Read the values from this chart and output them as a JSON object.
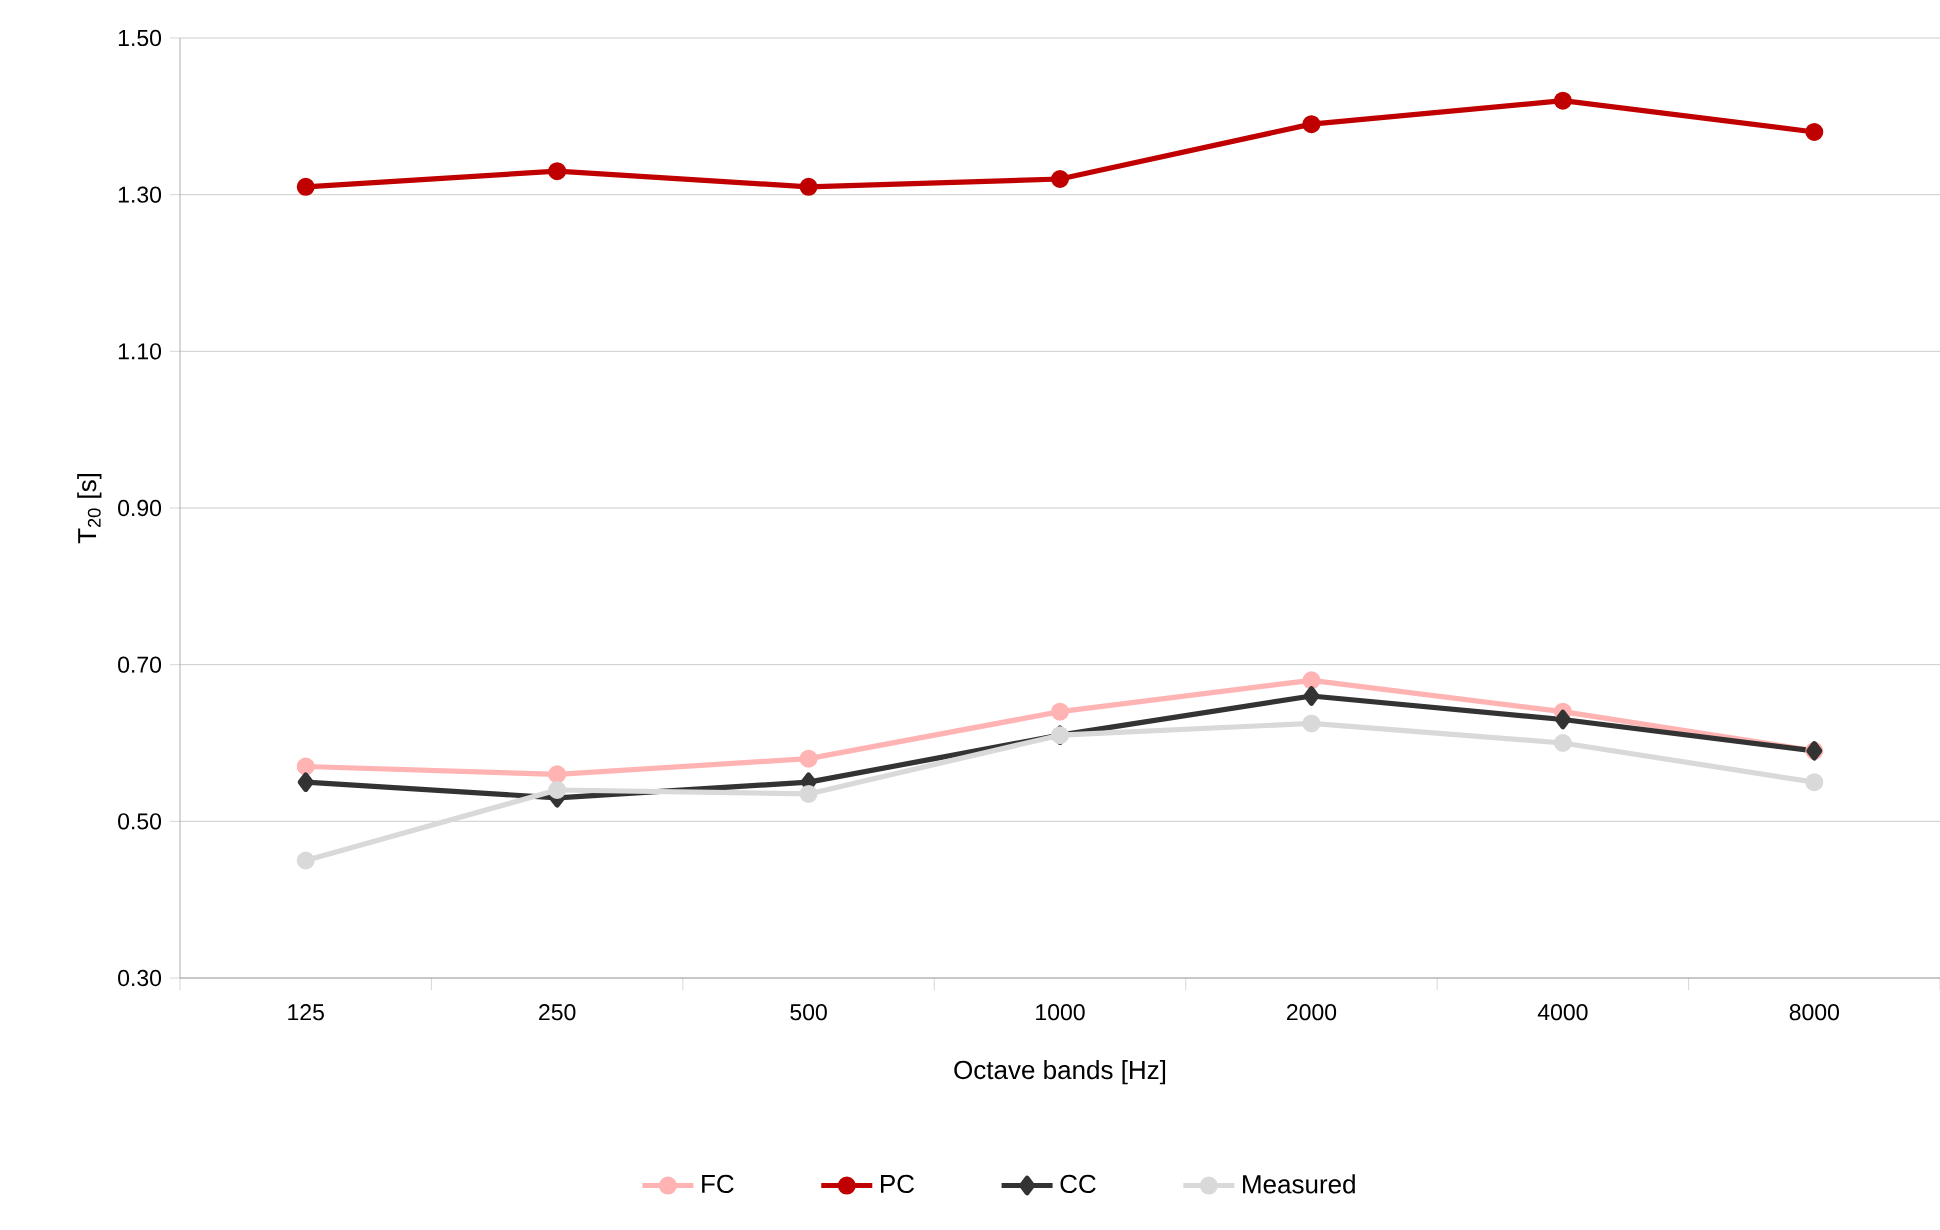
{
  "chart_data": {
    "type": "line",
    "xlabel": "Octave bands [Hz]",
    "ylabel": "T$_{20}$ [s]",
    "categories": [
      "125",
      "250",
      "500",
      "1000",
      "2000",
      "4000",
      "8000"
    ],
    "ylim": [
      0.3,
      1.5
    ],
    "yticks": [
      {
        "value": 0.3,
        "label": "0.30"
      },
      {
        "value": 0.5,
        "label": "0.50"
      },
      {
        "value": 0.7,
        "label": "0.70"
      },
      {
        "value": 0.9,
        "label": "0.90"
      },
      {
        "value": 1.1,
        "label": "1.10"
      },
      {
        "value": 1.3,
        "label": "1.30"
      },
      {
        "value": 1.5,
        "label": "1.50"
      }
    ],
    "grid": "y",
    "legend": "bottom",
    "line_style": "solid",
    "series": [
      {
        "name": "FC",
        "color": "#ffb3b3",
        "marker": "circle",
        "values": [
          0.57,
          0.56,
          0.58,
          0.64,
          0.68,
          0.64,
          0.59
        ]
      },
      {
        "name": "PC",
        "color": "#c00000",
        "marker": "circle",
        "values": [
          1.31,
          1.33,
          1.31,
          1.32,
          1.39,
          1.42,
          1.38
        ]
      },
      {
        "name": "CC",
        "color": "#333333",
        "marker": "diamond",
        "values": [
          0.55,
          0.53,
          0.55,
          0.61,
          0.66,
          0.63,
          0.59
        ]
      },
      {
        "name": "Measured",
        "color": "#d9d9d9",
        "marker": "circle",
        "values": [
          0.45,
          0.54,
          0.535,
          0.61,
          0.625,
          0.6,
          0.55
        ]
      }
    ]
  }
}
